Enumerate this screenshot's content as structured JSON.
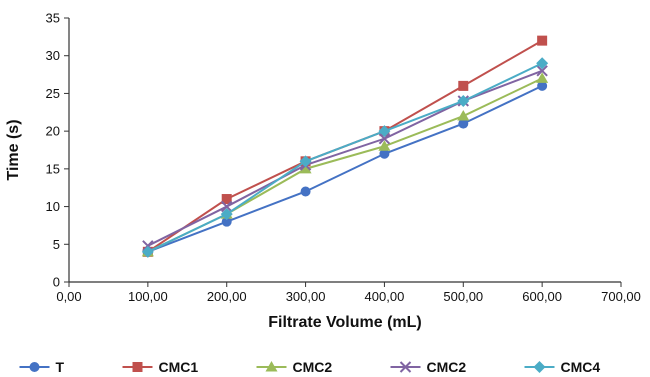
{
  "chart_data": {
    "type": "line",
    "xlabel": "Filtrate Volume (mL)",
    "ylabel": "Time (s)",
    "xlim": [
      0,
      700
    ],
    "ylim": [
      0,
      35
    ],
    "x_ticks": [
      0,
      100,
      200,
      300,
      400,
      500,
      600,
      700
    ],
    "x_tick_labels": [
      "0,00",
      "100,00",
      "200,00",
      "300,00",
      "400,00",
      "500,00",
      "600,00",
      "700,00"
    ],
    "y_ticks": [
      0,
      5,
      10,
      15,
      20,
      25,
      30,
      35
    ],
    "y_tick_labels": [
      "0",
      "5",
      "10",
      "15",
      "20",
      "25",
      "30",
      "35"
    ],
    "grid": false,
    "legend_position": "bottom",
    "x": [
      100,
      200,
      300,
      400,
      500,
      600
    ],
    "series": [
      {
        "name": "T",
        "values": [
          4,
          8,
          12,
          17,
          21,
          26
        ],
        "color": "#4472c4",
        "marker": "circle"
      },
      {
        "name": "CMC1",
        "values": [
          4,
          11,
          16,
          20,
          26,
          32
        ],
        "color": "#c0504d",
        "marker": "square"
      },
      {
        "name": "CMC2",
        "values": [
          4,
          9,
          15,
          18,
          22,
          27
        ],
        "color": "#9bbb59",
        "marker": "triangle"
      },
      {
        "name": "CMC2",
        "values": [
          4.8,
          10,
          15.5,
          19,
          24,
          28
        ],
        "color": "#8064a2",
        "marker": "cross"
      },
      {
        "name": "CMC4",
        "values": [
          4,
          9,
          16,
          20,
          24,
          29
        ],
        "color": "#4bacc6",
        "marker": "diamond"
      }
    ]
  }
}
